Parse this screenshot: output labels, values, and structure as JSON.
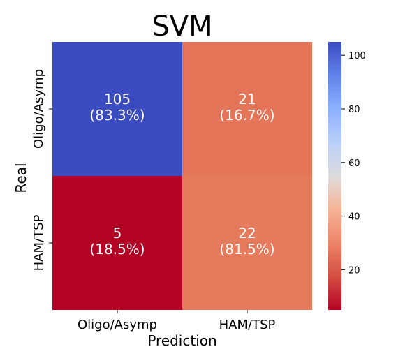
{
  "chart_data": {
    "type": "heatmap",
    "title": "SVM",
    "xlabel": "Prediction",
    "ylabel": "Real",
    "x_categories": [
      "Oligo/Asymp",
      "HAM/TSP"
    ],
    "y_categories": [
      "Oligo/Asymp",
      "HAM/TSP"
    ],
    "cells": [
      [
        {
          "count": "105",
          "percent": "(83.3%)",
          "value": 105,
          "color": "#3b4cc0"
        },
        {
          "count": "21",
          "percent": "(16.7%)",
          "value": 21,
          "color": "#e57558"
        }
      ],
      [
        {
          "count": "5",
          "percent": "(18.5%)",
          "value": 5,
          "color": "#b40426"
        },
        {
          "count": "22",
          "percent": "(81.5%)",
          "value": 22,
          "color": "#e67a5d"
        }
      ]
    ],
    "colorbar": {
      "colormap": "coolwarm",
      "min": 5,
      "max": 105,
      "ticks": [
        "20",
        "40",
        "60",
        "80",
        "100"
      ]
    },
    "colors": {
      "low": "#b40426",
      "mid": "#dddddd",
      "high": "#3b4cc0",
      "label_text": "#ffffff"
    }
  }
}
